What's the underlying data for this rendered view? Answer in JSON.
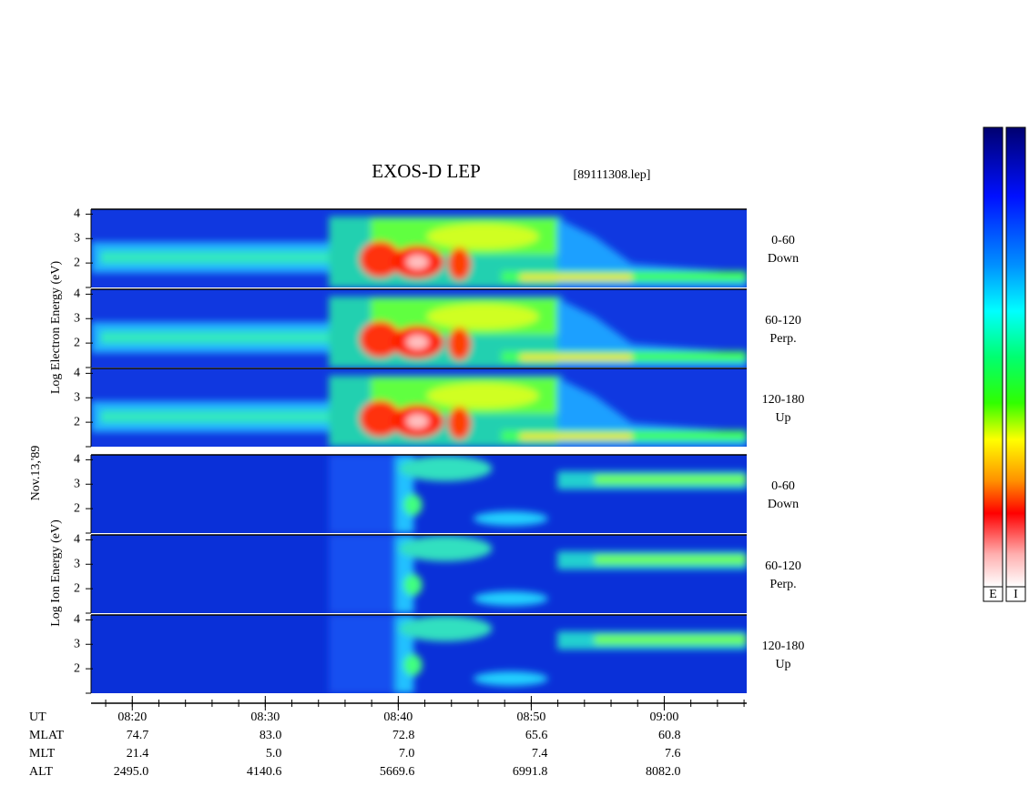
{
  "chart_data": {
    "type": "spectrogram",
    "title": "EXOS-D LEP",
    "subtitle": "[89111308.lep]",
    "date_label": "Nov.13,'89",
    "xlim": [
      496.9,
      546.2
    ],
    "xticks": [
      {
        "value": 500,
        "label": "08:20"
      },
      {
        "value": 510,
        "label": "08:30"
      },
      {
        "value": 520,
        "label": "08:40"
      },
      {
        "value": 530,
        "label": "08:50"
      },
      {
        "value": 540,
        "label": "09:00"
      }
    ],
    "y_labels": [
      "Log Electron Energy (eV)",
      "Log Ion Energy (eV)"
    ],
    "panels": [
      {
        "species": "electron",
        "ylim": [
          1,
          4.2
        ],
        "yticks": [
          2,
          3,
          4
        ],
        "pitch": "0-60",
        "direction": "Down"
      },
      {
        "species": "electron",
        "ylim": [
          1,
          4.2
        ],
        "yticks": [
          2,
          3,
          4
        ],
        "pitch": "60-120",
        "direction": "Perp."
      },
      {
        "species": "electron",
        "ylim": [
          1,
          4.2
        ],
        "yticks": [
          2,
          3,
          4
        ],
        "pitch": "120-180",
        "direction": "Up"
      },
      {
        "species": "ion",
        "ylim": [
          1,
          4.2
        ],
        "yticks": [
          2,
          3,
          4
        ],
        "pitch": "0-60",
        "direction": "Down"
      },
      {
        "species": "ion",
        "ylim": [
          1,
          4.2
        ],
        "yticks": [
          2,
          3,
          4
        ],
        "pitch": "60-120",
        "direction": "Perp."
      },
      {
        "species": "ion",
        "ylim": [
          1,
          4.2
        ],
        "yticks": [
          2,
          3,
          4
        ],
        "pitch": "120-180",
        "direction": "Up"
      }
    ],
    "time_row": "UT",
    "orbit": [
      {
        "name": "MLAT",
        "values": [
          74.7,
          83.0,
          72.8,
          65.6,
          60.8
        ],
        "value_labels": [
          "74.7",
          "83.0",
          "72.8",
          "65.6",
          "60.8"
        ]
      },
      {
        "name": "MLT",
        "values": [
          21.4,
          5.0,
          7.0,
          7.4,
          7.6
        ],
        "value_labels": [
          "21.4",
          "5.0",
          "7.0",
          "7.4",
          "7.6"
        ]
      },
      {
        "name": "ALT",
        "values": [
          2495.0,
          4140.6,
          5669.6,
          6991.8,
          8082.0
        ],
        "value_labels": [
          "2495.0",
          "4140.6",
          "5669.6",
          "6991.8",
          "8082.0"
        ]
      }
    ],
    "colorbars": [
      "E",
      "I"
    ]
  }
}
